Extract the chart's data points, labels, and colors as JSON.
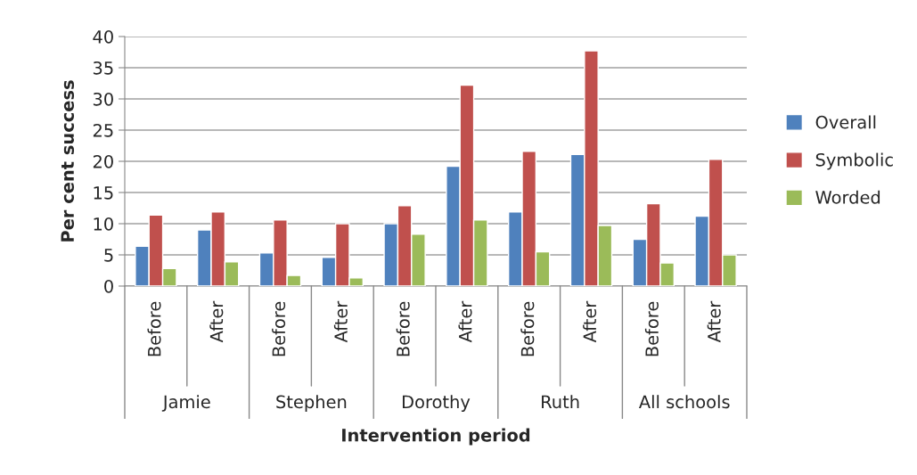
{
  "chart_data": {
    "type": "bar",
    "xlabel": "Intervention period",
    "ylabel": "Per cent success",
    "categories": [
      "Before",
      "After",
      "Before",
      "After",
      "Before",
      "After",
      "Before",
      "After",
      "Before",
      "After"
    ],
    "annotations": [
      "Jamie",
      "Stephen",
      "Dorothy",
      "Ruth",
      "All schools"
    ],
    "series": [
      {
        "name": "Overall",
        "color": "#4f81bd",
        "values": [
          6.4,
          9.0,
          5.3,
          4.6,
          10.0,
          19.2,
          11.9,
          21.1,
          7.5,
          11.2
        ]
      },
      {
        "name": "Symbolic",
        "color": "#c0504d",
        "values": [
          11.4,
          11.9,
          10.6,
          10.0,
          12.9,
          32.2,
          21.6,
          37.7,
          13.2,
          20.3
        ]
      },
      {
        "name": "Worded",
        "color": "#9bbb59",
        "values": [
          2.8,
          3.9,
          1.7,
          1.3,
          8.3,
          10.6,
          5.5,
          9.7,
          3.7,
          5.0
        ]
      }
    ],
    "ylim": [
      0,
      40
    ],
    "yticks": [
      0,
      5,
      10,
      15,
      20,
      25,
      30,
      35,
      40
    ],
    "grid": "y",
    "legend": "right"
  }
}
